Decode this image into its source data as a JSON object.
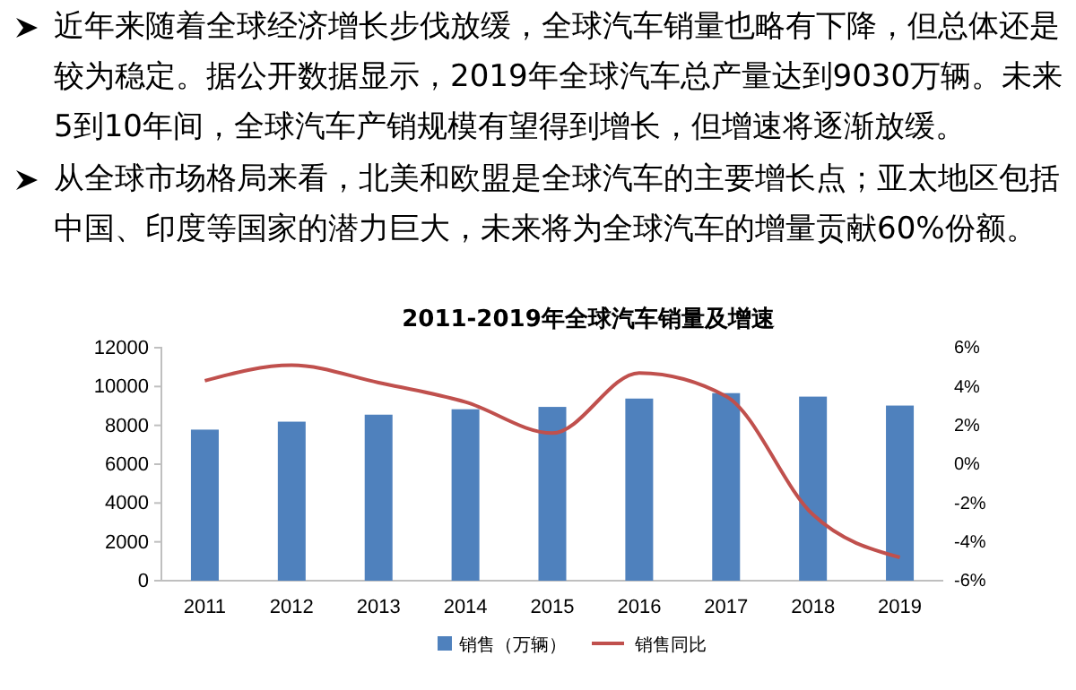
{
  "chart_data": {
    "type": "bar",
    "title": "2011-2019年全球汽车销量及增速",
    "annotations": [
      "近年来随着全球经济增长步伐放缓，全球汽车销量也略有下降，但总体还是较为稳定。据公开数据显示，2019年全球汽车总产量达到9030万辆。未来5到10年间，全球汽车产销规模有望得到增长，但增速将逐渐放缓。",
      "从全球市场格局来看，北美和欧盟是全球汽车的主要增长点；亚太地区包括中国、印度等国家的潜力巨大，未来将为全球汽车的增量贡献60%份额。"
    ],
    "categories": [
      "2011",
      "2012",
      "2013",
      "2014",
      "2015",
      "2016",
      "2017",
      "2018",
      "2019"
    ],
    "series": [
      {
        "name": "销售（万辆）",
        "color": "#4f81bd",
        "values": [
          7780,
          8190,
          8550,
          8830,
          8950,
          9380,
          9660,
          9480,
          9020
        ]
      },
      {
        "name": "销售同比",
        "type": "line",
        "axis": "y2",
        "color": "#c0504d",
        "values": [
          4.3,
          5.1,
          4.2,
          3.2,
          1.6,
          4.7,
          3.5,
          -2.6,
          -4.8
        ]
      }
    ],
    "ylim": [
      0,
      12000
    ],
    "yticks": [
      0,
      2000,
      4000,
      6000,
      8000,
      10000,
      12000
    ],
    "y2lim": [
      -6,
      6
    ],
    "y2ticks": [
      {
        "value": -6,
        "label": "-6%"
      },
      {
        "value": -4,
        "label": "-4%"
      },
      {
        "value": -2,
        "label": "-2%"
      },
      {
        "value": 0,
        "label": "0%"
      },
      {
        "value": 2,
        "label": "2%"
      },
      {
        "value": 4,
        "label": "4%"
      },
      {
        "value": 6,
        "label": "6%"
      }
    ],
    "legend": "bottom",
    "grid": false,
    "marker": "none"
  }
}
